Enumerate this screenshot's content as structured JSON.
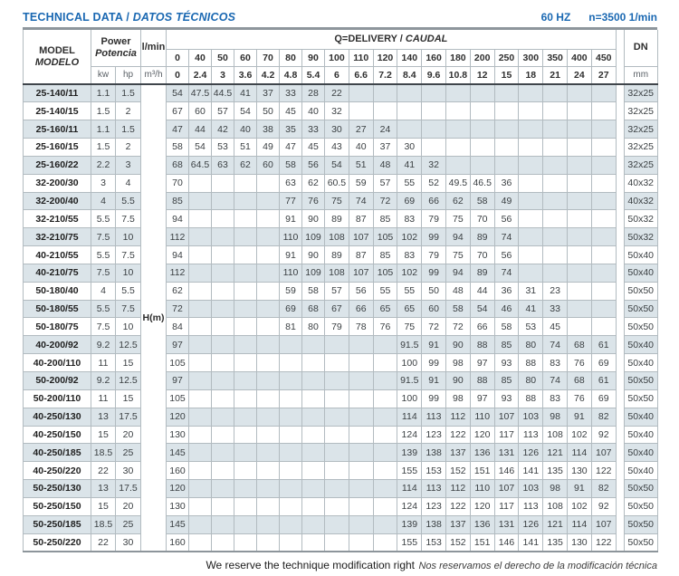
{
  "page": {
    "title_en": "TECHNICAL DATA /",
    "title_es": "DATOS TÉCNICOS",
    "frequency": "60 HZ",
    "speed": "n=3500 1/min",
    "footer_en": "We reserve the technique modification right",
    "footer_es": "Nos reservamos el derecho de la modificación técnica"
  },
  "colors": {
    "accent_blue": "#1a68b2",
    "row_stripe": "#dbe4e9",
    "cell_border": "#b2bbc0",
    "header_underline": "#3f454b",
    "thick_rule": "#8e969c"
  },
  "table": {
    "header": {
      "model_label": "MODEL",
      "model_label_es": "MODELO",
      "power_label": "Power",
      "power_label_es": "Potencia",
      "unit_kw": "kw",
      "unit_hp": "hp",
      "flow_unit_lmin": "l/min",
      "flow_unit_m3h": "m³/h",
      "q_label": "Q=DELIVERY /",
      "q_label_es": "CAUDAL",
      "q_lmin": [
        "0",
        "40",
        "50",
        "60",
        "70",
        "80",
        "90",
        "100",
        "110",
        "120",
        "140",
        "160",
        "180",
        "200",
        "250",
        "300",
        "350",
        "400",
        "450"
      ],
      "q_m3h": [
        "0",
        "2.4",
        "3",
        "3.6",
        "4.2",
        "4.8",
        "5.4",
        "6",
        "6.6",
        "7.2",
        "8.4",
        "9.6",
        "10.8",
        "12",
        "15",
        "18",
        "21",
        "24",
        "27"
      ],
      "dn_label": "DN",
      "dn_unit": "mm",
      "head_label": "H(m)"
    },
    "rows": [
      {
        "model": "25-140/11",
        "kw": "1.1",
        "hp": "1.5",
        "values": [
          "54",
          "47.5",
          "44.5",
          "41",
          "37",
          "33",
          "28",
          "22",
          "",
          "",
          "",
          "",
          "",
          "",
          "",
          "",
          "",
          "",
          ""
        ],
        "dn": "32x25"
      },
      {
        "model": "25-140/15",
        "kw": "1.5",
        "hp": "2",
        "values": [
          "67",
          "60",
          "57",
          "54",
          "50",
          "45",
          "40",
          "32",
          "",
          "",
          "",
          "",
          "",
          "",
          "",
          "",
          "",
          "",
          ""
        ],
        "dn": "32x25"
      },
      {
        "model": "25-160/11",
        "kw": "1.1",
        "hp": "1.5",
        "values": [
          "47",
          "44",
          "42",
          "40",
          "38",
          "35",
          "33",
          "30",
          "27",
          "24",
          "",
          "",
          "",
          "",
          "",
          "",
          "",
          "",
          ""
        ],
        "dn": "32x25"
      },
      {
        "model": "25-160/15",
        "kw": "1.5",
        "hp": "2",
        "values": [
          "58",
          "54",
          "53",
          "51",
          "49",
          "47",
          "45",
          "43",
          "40",
          "37",
          "30",
          "",
          "",
          "",
          "",
          "",
          "",
          "",
          ""
        ],
        "dn": "32x25"
      },
      {
        "model": "25-160/22",
        "kw": "2.2",
        "hp": "3",
        "values": [
          "68",
          "64.5",
          "63",
          "62",
          "60",
          "58",
          "56",
          "54",
          "51",
          "48",
          "41",
          "32",
          "",
          "",
          "",
          "",
          "",
          "",
          ""
        ],
        "dn": "32x25"
      },
      {
        "model": "32-200/30",
        "kw": "3",
        "hp": "4",
        "values": [
          "70",
          "",
          "",
          "",
          "",
          "63",
          "62",
          "60.5",
          "59",
          "57",
          "55",
          "52",
          "49.5",
          "46.5",
          "36",
          "",
          "",
          "",
          ""
        ],
        "dn": "40x32"
      },
      {
        "model": "32-200/40",
        "kw": "4",
        "hp": "5.5",
        "values": [
          "85",
          "",
          "",
          "",
          "",
          "77",
          "76",
          "75",
          "74",
          "72",
          "69",
          "66",
          "62",
          "58",
          "49",
          "",
          "",
          "",
          ""
        ],
        "dn": "40x32"
      },
      {
        "model": "32-210/55",
        "kw": "5.5",
        "hp": "7.5",
        "values": [
          "94",
          "",
          "",
          "",
          "",
          "91",
          "90",
          "89",
          "87",
          "85",
          "83",
          "79",
          "75",
          "70",
          "56",
          "",
          "",
          "",
          ""
        ],
        "dn": "50x32"
      },
      {
        "model": "32-210/75",
        "kw": "7.5",
        "hp": "10",
        "values": [
          "112",
          "",
          "",
          "",
          "",
          "110",
          "109",
          "108",
          "107",
          "105",
          "102",
          "99",
          "94",
          "89",
          "74",
          "",
          "",
          "",
          ""
        ],
        "dn": "50x32"
      },
      {
        "model": "40-210/55",
        "kw": "5.5",
        "hp": "7.5",
        "values": [
          "94",
          "",
          "",
          "",
          "",
          "91",
          "90",
          "89",
          "87",
          "85",
          "83",
          "79",
          "75",
          "70",
          "56",
          "",
          "",
          "",
          ""
        ],
        "dn": "50x40"
      },
      {
        "model": "40-210/75",
        "kw": "7.5",
        "hp": "10",
        "values": [
          "112",
          "",
          "",
          "",
          "",
          "110",
          "109",
          "108",
          "107",
          "105",
          "102",
          "99",
          "94",
          "89",
          "74",
          "",
          "",
          "",
          ""
        ],
        "dn": "50x40"
      },
      {
        "model": "50-180/40",
        "kw": "4",
        "hp": "5.5",
        "values": [
          "62",
          "",
          "",
          "",
          "",
          "59",
          "58",
          "57",
          "56",
          "55",
          "55",
          "50",
          "48",
          "44",
          "36",
          "31",
          "23",
          "",
          ""
        ],
        "dn": "50x50"
      },
      {
        "model": "50-180/55",
        "kw": "5.5",
        "hp": "7.5",
        "values": [
          "72",
          "",
          "",
          "",
          "",
          "69",
          "68",
          "67",
          "66",
          "65",
          "65",
          "60",
          "58",
          "54",
          "46",
          "41",
          "33",
          "",
          ""
        ],
        "dn": "50x50"
      },
      {
        "model": "50-180/75",
        "kw": "7.5",
        "hp": "10",
        "values": [
          "84",
          "",
          "",
          "",
          "",
          "81",
          "80",
          "79",
          "78",
          "76",
          "75",
          "72",
          "72",
          "66",
          "58",
          "53",
          "45",
          "",
          ""
        ],
        "dn": "50x50"
      },
      {
        "model": "40-200/92",
        "kw": "9.2",
        "hp": "12.5",
        "values": [
          "97",
          "",
          "",
          "",
          "",
          "",
          "",
          "",
          "",
          "",
          "91.5",
          "91",
          "90",
          "88",
          "85",
          "80",
          "74",
          "68",
          "61"
        ],
        "dn": "50x40"
      },
      {
        "model": "40-200/110",
        "kw": "11",
        "hp": "15",
        "values": [
          "105",
          "",
          "",
          "",
          "",
          "",
          "",
          "",
          "",
          "",
          "100",
          "99",
          "98",
          "97",
          "93",
          "88",
          "83",
          "76",
          "69"
        ],
        "dn": "50x40"
      },
      {
        "model": "50-200/92",
        "kw": "9.2",
        "hp": "12.5",
        "values": [
          "97",
          "",
          "",
          "",
          "",
          "",
          "",
          "",
          "",
          "",
          "91.5",
          "91",
          "90",
          "88",
          "85",
          "80",
          "74",
          "68",
          "61"
        ],
        "dn": "50x50"
      },
      {
        "model": "50-200/110",
        "kw": "11",
        "hp": "15",
        "values": [
          "105",
          "",
          "",
          "",
          "",
          "",
          "",
          "",
          "",
          "",
          "100",
          "99",
          "98",
          "97",
          "93",
          "88",
          "83",
          "76",
          "69"
        ],
        "dn": "50x50"
      },
      {
        "model": "40-250/130",
        "kw": "13",
        "hp": "17.5",
        "values": [
          "120",
          "",
          "",
          "",
          "",
          "",
          "",
          "",
          "",
          "",
          "114",
          "113",
          "112",
          "110",
          "107",
          "103",
          "98",
          "91",
          "82"
        ],
        "dn": "50x40"
      },
      {
        "model": "40-250/150",
        "kw": "15",
        "hp": "20",
        "values": [
          "130",
          "",
          "",
          "",
          "",
          "",
          "",
          "",
          "",
          "",
          "124",
          "123",
          "122",
          "120",
          "117",
          "113",
          "108",
          "102",
          "92"
        ],
        "dn": "50x40"
      },
      {
        "model": "40-250/185",
        "kw": "18.5",
        "hp": "25",
        "values": [
          "145",
          "",
          "",
          "",
          "",
          "",
          "",
          "",
          "",
          "",
          "139",
          "138",
          "137",
          "136",
          "131",
          "126",
          "121",
          "114",
          "107"
        ],
        "dn": "50x40"
      },
      {
        "model": "40-250/220",
        "kw": "22",
        "hp": "30",
        "values": [
          "160",
          "",
          "",
          "",
          "",
          "",
          "",
          "",
          "",
          "",
          "155",
          "153",
          "152",
          "151",
          "146",
          "141",
          "135",
          "130",
          "122"
        ],
        "dn": "50x40"
      },
      {
        "model": "50-250/130",
        "kw": "13",
        "hp": "17.5",
        "values": [
          "120",
          "",
          "",
          "",
          "",
          "",
          "",
          "",
          "",
          "",
          "114",
          "113",
          "112",
          "110",
          "107",
          "103",
          "98",
          "91",
          "82"
        ],
        "dn": "50x50"
      },
      {
        "model": "50-250/150",
        "kw": "15",
        "hp": "20",
        "values": [
          "130",
          "",
          "",
          "",
          "",
          "",
          "",
          "",
          "",
          "",
          "124",
          "123",
          "122",
          "120",
          "117",
          "113",
          "108",
          "102",
          "92"
        ],
        "dn": "50x50"
      },
      {
        "model": "50-250/185",
        "kw": "18.5",
        "hp": "25",
        "values": [
          "145",
          "",
          "",
          "",
          "",
          "",
          "",
          "",
          "",
          "",
          "139",
          "138",
          "137",
          "136",
          "131",
          "126",
          "121",
          "114",
          "107"
        ],
        "dn": "50x50"
      },
      {
        "model": "50-250/220",
        "kw": "22",
        "hp": "30",
        "values": [
          "160",
          "",
          "",
          "",
          "",
          "",
          "",
          "",
          "",
          "",
          "155",
          "153",
          "152",
          "151",
          "146",
          "141",
          "135",
          "130",
          "122"
        ],
        "dn": "50x50"
      }
    ]
  }
}
